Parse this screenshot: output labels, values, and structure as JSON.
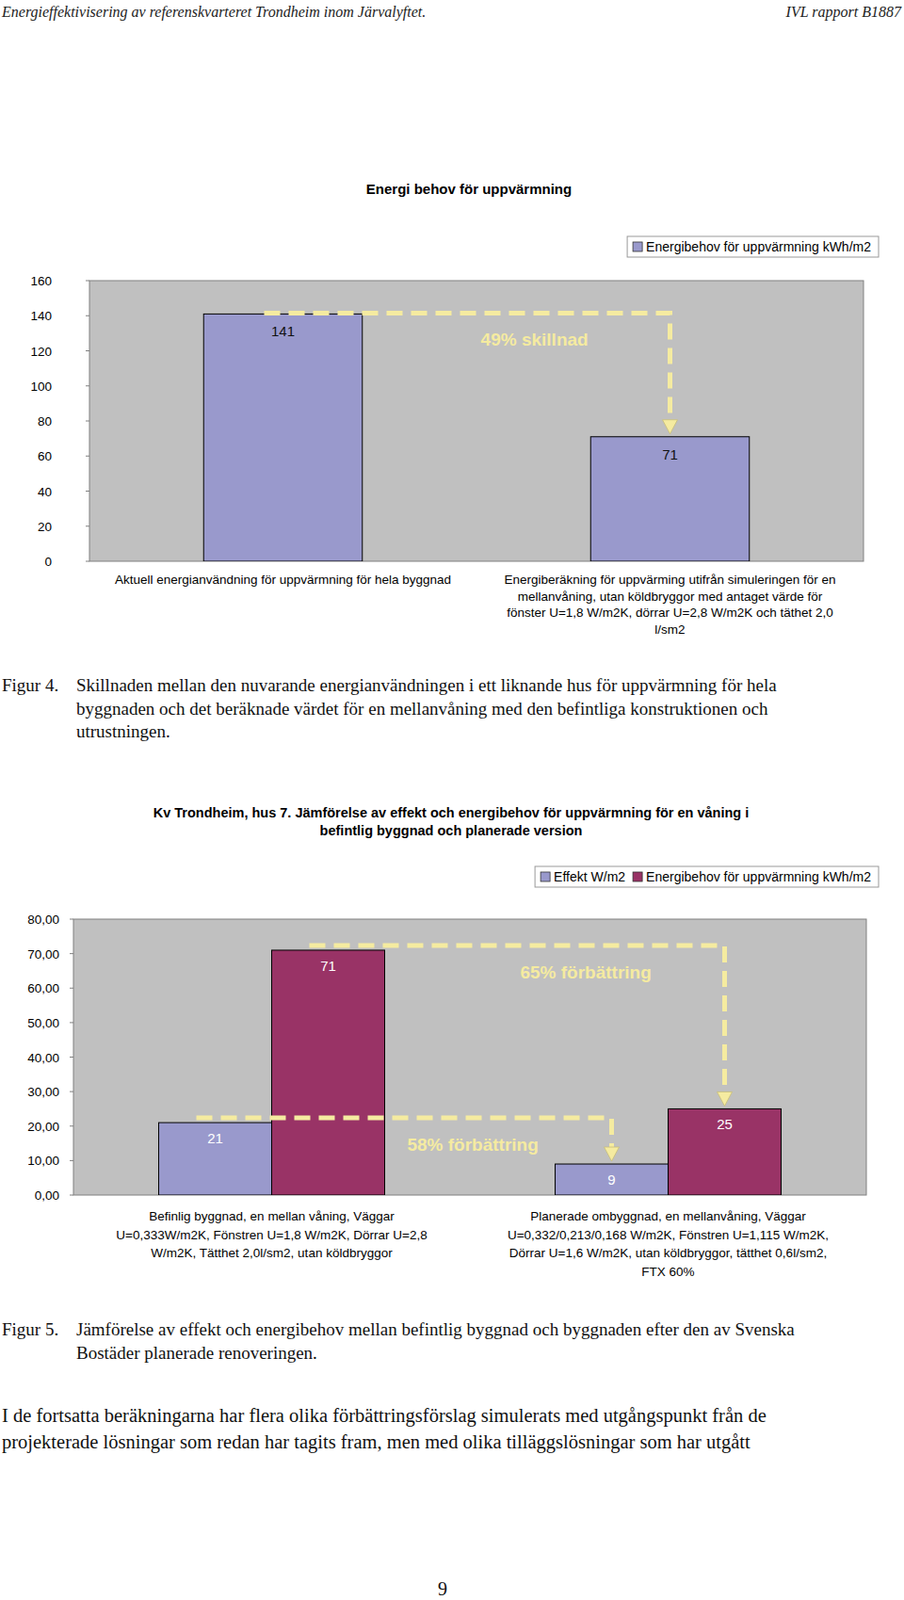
{
  "header": {
    "left": "Energieffektivisering av referenskvarteret Trondheim inom Järvalyftet.",
    "right": "IVL rapport B1887"
  },
  "chart_data": [
    {
      "type": "bar",
      "title": "Energi behov för uppvärmning",
      "categories": [
        "Aktuell energianvändning för uppvärmning för hela byggnad",
        "Energiberäkning för uppvärming utifrån simuleringen för en\nmellanvåning, utan köldbryggor med antaget värde för\nfönster U=1,8 W/m2K, dörrar U=2,8 W/m2K och täthet 2,0\nl/sm2"
      ],
      "series": [
        {
          "name": "Energibehov för uppvärmning kWh/m2",
          "color": "#9999cc",
          "values": [
            141,
            71
          ],
          "annotation": "49% skillnad"
        }
      ],
      "ylim": [
        0,
        160
      ],
      "yticks": [
        0,
        20,
        40,
        60,
        80,
        100,
        120,
        140,
        160
      ],
      "grid": false,
      "legend": "top-right",
      "data_labels": true
    },
    {
      "type": "bar",
      "title": "Kv Trondheim, hus 7. Jämförelse av effekt och energibehov för uppvärmning för en våning i\nbefintlig byggnad och planerade version",
      "categories": [
        "Befinlig byggnad, en mellan våning, Väggar\nU=0,333W/m2K, Fönstren U=1,8 W/m2K, Dörrar U=2,8\nW/m2K, Tätthet 2,0l/sm2, utan köldbryggor",
        "Planerade ombyggnad, en mellanvåning, Väggar\nU=0,332/0,213/0,168 W/m2K, Fönstren U=1,115 W/m2K,\nDörrar U=1,6 W/m2K, utan köldbryggor, tätthet 0,6l/sm2,\nFTX 60%"
      ],
      "series": [
        {
          "name": "Effekt W/m2",
          "color": "#9999cc",
          "values": [
            21,
            9
          ],
          "annotation": "58% förbättring"
        },
        {
          "name": "Energibehov för uppvärmning kWh/m2",
          "color": "#993366",
          "values": [
            71,
            25
          ],
          "annotation": "65% förbättring"
        }
      ],
      "ylim": [
        0,
        80
      ],
      "yticks": [
        {
          "value": 0,
          "label": "0,00"
        },
        {
          "value": 10,
          "label": "10,00"
        },
        {
          "value": 20,
          "label": "20,00"
        },
        {
          "value": 30,
          "label": "30,00"
        },
        {
          "value": 40,
          "label": "40,00"
        },
        {
          "value": 50,
          "label": "50,00"
        },
        {
          "value": 60,
          "label": "60,00"
        },
        {
          "value": 70,
          "label": "70,00"
        },
        {
          "value": 80,
          "label": "80,00"
        }
      ],
      "grid": false,
      "legend": "top-right",
      "data_labels": true
    }
  ],
  "captions": [
    {
      "label": "Figur 4.",
      "text": "Skillnaden mellan den nuvarande energianvändningen i ett liknande hus för uppvärmning för hela\nbyggnaden och det beräknade värdet för en mellanvåning med den befintliga konstruktionen och\nutrustningen."
    },
    {
      "label": "Figur 5.",
      "text": "Jämförelse av effekt och energibehov mellan befintlig byggnad och byggnaden efter den av Svenska\nBostäder planerade renoveringen."
    }
  ],
  "body_text": "I de fortsatta beräkningarna har flera olika förbättringsförslag simulerats med utgångspunkt från de\nprojekterade lösningar som redan har tagits fram, men med olika tilläggslösningar som har utgått",
  "page_number": 9
}
